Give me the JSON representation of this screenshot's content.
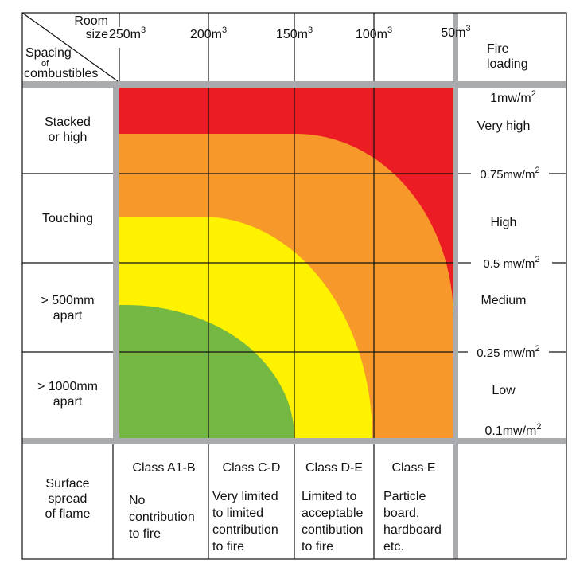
{
  "corner": {
    "room_size": "Room\nsize",
    "spacing": "Spacing",
    "of": "of",
    "combustibles": "combustibles"
  },
  "room_sizes": [
    {
      "value": "250m",
      "sup": "3"
    },
    {
      "value": "200m",
      "sup": "3"
    },
    {
      "value": "150m",
      "sup": "3"
    },
    {
      "value": "100m",
      "sup": "3"
    },
    {
      "value": "50m",
      "sup": "3"
    }
  ],
  "fire_loading_header": "Fire\nloading",
  "spacing_rows": [
    "Stacked\nor high",
    "Touching",
    "> 500mm\napart",
    "> 1000mm\napart"
  ],
  "fire_loading_marks": [
    {
      "value": "1mw/m",
      "sup": "2"
    },
    {
      "value": "0.75mw/m",
      "sup": "2"
    },
    {
      "value": "0.5 mw/m",
      "sup": "2"
    },
    {
      "value": "0.25 mw/m",
      "sup": "2"
    },
    {
      "value": "0.1mw/m",
      "sup": "2"
    }
  ],
  "fire_loading_levels": [
    "Very high",
    "High",
    "Medium",
    "Low"
  ],
  "surface_spread": {
    "label": "Surface\nspread\nof flame",
    "classes": [
      {
        "name": "Class A1-B",
        "desc": "No\ncontribution\nto fire"
      },
      {
        "name": "Class C-D",
        "desc": "Very limited\nto limited\ncontribution\nto fire"
      },
      {
        "name": "Class D-E",
        "desc": "Limited to\nacceptable\ncontibution\nto fire"
      },
      {
        "name": "Class E",
        "desc": "Particle\nboard,\nhardboard\netc."
      }
    ]
  },
  "colors": {
    "red": "#ec1c24",
    "orange": "#f7982b",
    "yellow": "#fff200",
    "green": "#74b843",
    "gray": "#a9abae"
  }
}
